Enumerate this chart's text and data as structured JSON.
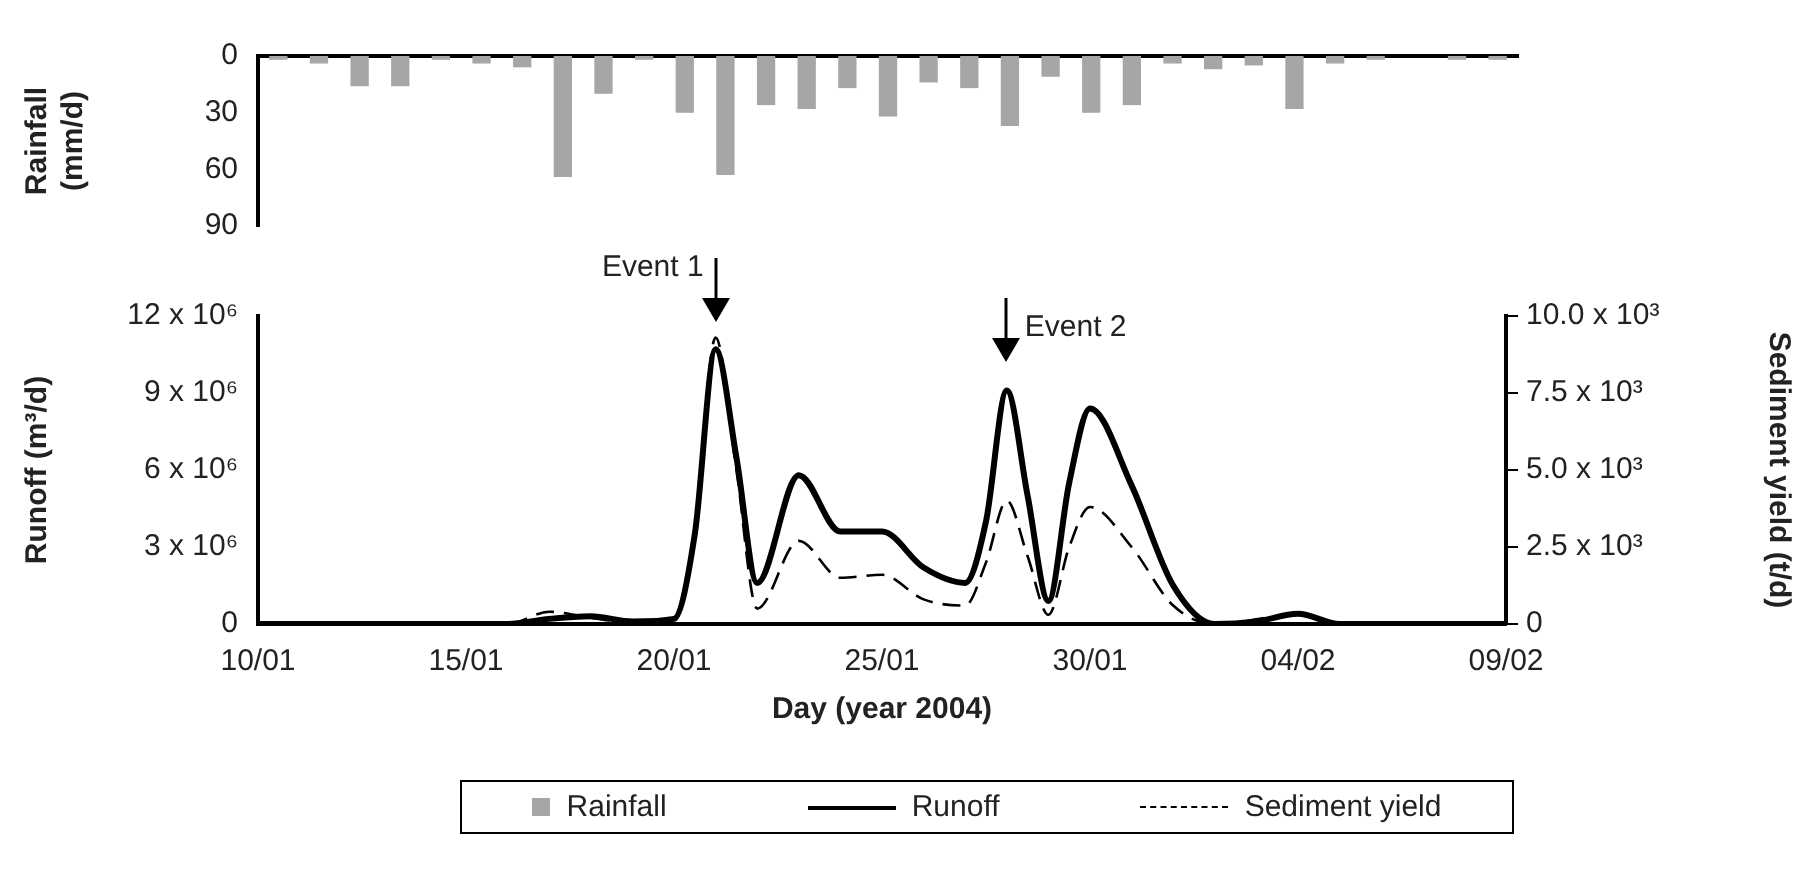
{
  "chart_data": [
    {
      "type": "bar",
      "ylabel": "Rainfall (mm/d)",
      "categories": [
        null,
        null,
        null,
        null,
        null,
        null,
        null,
        null,
        null,
        null,
        null,
        null,
        null,
        null,
        null,
        null,
        null,
        null,
        null,
        null,
        null,
        null,
        null,
        null,
        null,
        null,
        null,
        null,
        null,
        null,
        null
      ],
      "series": [
        {
          "name": "Rainfall",
          "color": "#a6a6a6",
          "values": [
            2,
            4,
            16,
            16,
            2,
            4,
            6,
            64,
            20,
            2,
            30,
            63,
            26,
            28,
            17,
            32,
            14,
            17,
            37,
            11,
            30,
            26,
            4,
            7,
            5,
            28,
            4,
            2,
            0,
            2,
            2
          ]
        }
      ],
      "ylim": [
        90,
        0
      ],
      "yticks": [
        0,
        30,
        60,
        90
      ],
      "tick_labels": "y",
      "legend": "bottom",
      "grid": false
    },
    {
      "type": "line",
      "xlabel": "Day (year 2004)",
      "ylabel": "Runoff (m³/d)",
      "y2label": "Sediment yield (t/d)",
      "xlim": [
        "2004-01-10",
        "2004-02-09"
      ],
      "xticks": [
        {
          "value": "2004-01-10",
          "label": "10/01"
        },
        {
          "value": "2004-01-15",
          "label": "15/01"
        },
        {
          "value": "2004-01-20",
          "label": "20/01"
        },
        {
          "value": "2004-01-25",
          "label": "25/01"
        },
        {
          "value": "2004-01-30",
          "label": "30/01"
        },
        {
          "value": "2004-02-04",
          "label": "04/02"
        },
        {
          "value": "2004-02-09",
          "label": "09/02"
        }
      ],
      "ylim": [
        0,
        12000000
      ],
      "yticks": [
        0,
        {
          "value": 3000000,
          "label": "3 x 10⁶"
        },
        {
          "value": 6000000,
          "label": "6 x 10⁶"
        },
        {
          "value": 9000000,
          "label": "9 x 10⁶"
        },
        {
          "value": 12000000,
          "label": "12 x 10⁶"
        }
      ],
      "y2lim": [
        0,
        10000
      ],
      "y2ticks": [
        0,
        {
          "value": 2500,
          "label": "2.5 x 10³"
        },
        {
          "value": 5000,
          "label": "5.0 x 10³"
        },
        {
          "value": 7500,
          "label": "7.5 x 10³"
        },
        {
          "value": 10000,
          "label": "10.0 x 10³"
        }
      ],
      "series": [
        {
          "name": "Runoff",
          "color": "#000000",
          "line_style": "solid",
          "x": [
            "2004-01-10",
            "2004-01-12",
            "2004-01-14",
            "2004-01-16",
            "2004-01-17",
            "2004-01-18",
            "2004-01-19",
            "2004-01-20",
            "2004-01-20T12:00",
            "2004-01-21",
            "2004-01-21T12:00",
            "2004-01-22",
            "2004-01-23",
            "2004-01-24",
            "2004-01-25",
            "2004-01-26",
            "2004-01-27",
            "2004-01-27T12:00",
            "2004-01-28",
            "2004-01-28T12:00",
            "2004-01-29",
            "2004-01-29T12:00",
            "2004-01-30",
            "2004-01-31",
            "2004-02-01",
            "2004-02-02",
            "2004-02-03",
            "2004-02-04",
            "2004-02-05",
            "2004-02-07",
            "2004-02-09"
          ],
          "values": [
            0,
            0,
            0,
            0,
            200000,
            300000,
            100000,
            200000,
            3500000,
            10700000,
            6500000,
            1600000,
            5800000,
            3600000,
            3600000,
            2200000,
            1600000,
            4000000,
            9100000,
            5000000,
            900000,
            5500000,
            8400000,
            5400000,
            1500000,
            0,
            100000,
            400000,
            0,
            0,
            0
          ]
        },
        {
          "name": "Sediment yield",
          "color": "#000000",
          "line_style": "dashed",
          "axis": "y2",
          "x": [
            "2004-01-10",
            "2004-01-16",
            "2004-01-17",
            "2004-01-18",
            "2004-01-19",
            "2004-01-20",
            "2004-01-20T12:00",
            "2004-01-21",
            "2004-01-21T12:00",
            "2004-01-22",
            "2004-01-23",
            "2004-01-24",
            "2004-01-25",
            "2004-01-26",
            "2004-01-27",
            "2004-01-27T12:00",
            "2004-01-28",
            "2004-01-28T12:00",
            "2004-01-29",
            "2004-01-29T12:00",
            "2004-01-30",
            "2004-01-31",
            "2004-02-01",
            "2004-02-02",
            "2004-02-04",
            "2004-02-05",
            "2004-02-09"
          ],
          "values": [
            0,
            0,
            400,
            200,
            50,
            100,
            3000,
            9300,
            5000,
            500,
            2700,
            1500,
            1600,
            800,
            600,
            2000,
            4000,
            2200,
            300,
            2500,
            3800,
            2500,
            600,
            0,
            300,
            0,
            0
          ]
        }
      ],
      "annotations": [
        {
          "text": "Event 1",
          "x": "2004-01-21",
          "y": 10700000
        },
        {
          "text": "Event 2",
          "x": "2004-01-28",
          "y": 9100000
        }
      ],
      "legend": "bottom",
      "grid": false
    }
  ]
}
